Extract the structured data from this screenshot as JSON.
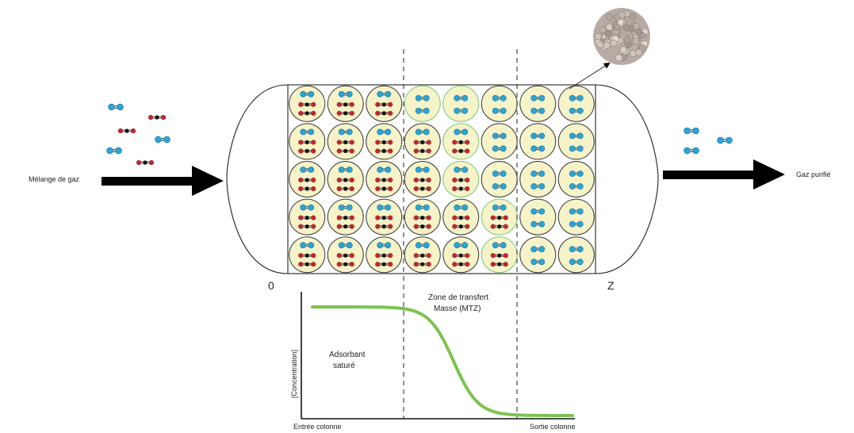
{
  "labels": {
    "inlet": "Mélange de gaz",
    "outlet": "Gaz purifié",
    "column_start": "0",
    "column_end": "Z",
    "mtz_line1": "Zone de transfert",
    "mtz_line2": "Masse (MTZ)",
    "saturated_line1": "Adsorbant",
    "saturated_line2": "saturé",
    "y_axis": "[Concentration]",
    "x_start": "Entrée colonne",
    "x_end": "Sortie colonne"
  },
  "colors": {
    "bead_fill": "#f7f3c8",
    "bead_stroke_saturated": "#3b3b3b",
    "bead_stroke_mtz": "#7ec87a",
    "small_molecule": "#29a6d8",
    "large_molecule_end": "#c8262c",
    "large_molecule_center": "#111111",
    "curve": "#7cc34f",
    "arrow": "#000000"
  },
  "grid": {
    "columns": 8,
    "rows": 5,
    "cell_contents": [
      [
        "B-CO2",
        "B-CO2",
        "B-CO2",
        "BB-mtz",
        "BB-mtz",
        "BB",
        "BB",
        "BB"
      ],
      [
        "B-CO2",
        "B-CO2",
        "B-CO2",
        "B-CO2",
        "B-CO2-mtz",
        "BB",
        "BB",
        "BB"
      ],
      [
        "B-CO2",
        "B-CO2",
        "B-CO2",
        "B-CO2",
        "B-CO2-mtz",
        "BB",
        "BB",
        "BB"
      ],
      [
        "B-CO2",
        "B-CO2",
        "B-CO2",
        "B-CO2",
        "B-CO2",
        "B-CO2-mtz",
        "BB",
        "BB"
      ],
      [
        "B-CO2",
        "B-CO2",
        "B-CO2",
        "B-CO2",
        "B-CO2",
        "B-CO2-mtz",
        "BB",
        "BB"
      ]
    ]
  },
  "breakthrough_curve": {
    "type": "line",
    "shape": "sigmoid",
    "y_high": "saturated",
    "y_low": "near zero",
    "drop_region": "zone de transfert"
  }
}
